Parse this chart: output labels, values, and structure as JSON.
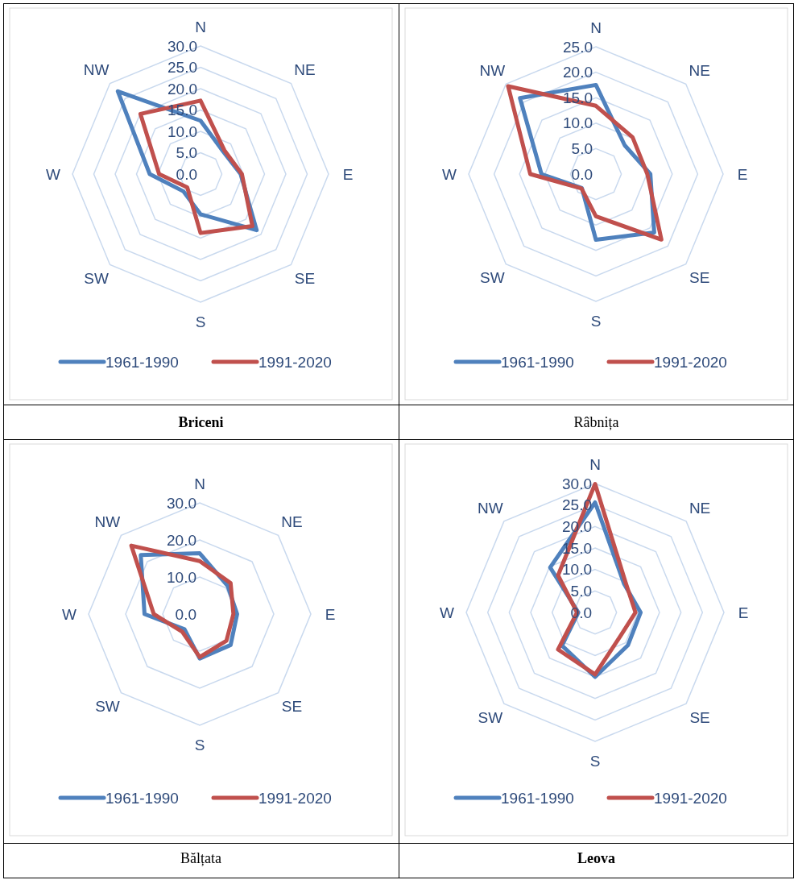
{
  "chart_data": [
    {
      "type": "radar",
      "title": "Briceni",
      "categories": [
        "N",
        "NE",
        "E",
        "SE",
        "S",
        "SW",
        "W",
        "NW"
      ],
      "ylim": [
        0,
        30
      ],
      "yticks": [
        {
          "value": 0,
          "label": "0.0"
        },
        {
          "value": 5,
          "label": "5.0"
        },
        {
          "value": 10,
          "label": "10.0"
        },
        {
          "value": 15,
          "label": "15.0"
        },
        {
          "value": 20,
          "label": "20.0"
        },
        {
          "value": 25,
          "label": "25.0"
        },
        {
          "value": 30,
          "label": "30.0"
        }
      ],
      "grid": true,
      "legend": "bottom",
      "series": [
        {
          "name": "1961-1990",
          "color": "#4f81bd",
          "values": [
            12.5,
            7.5,
            9.4,
            18.6,
            9.4,
            5.7,
            11.9,
            27.4
          ]
        },
        {
          "name": "1991-2020",
          "color": "#c0504d",
          "values": [
            17.2,
            7.9,
            9.7,
            17.2,
            13.8,
            4.4,
            9.7,
            19.9
          ]
        }
      ]
    },
    {
      "type": "radar",
      "title": "Râbnița",
      "categories": [
        "N",
        "NE",
        "E",
        "SE",
        "S",
        "SW",
        "W",
        "NW"
      ],
      "ylim": [
        0,
        25
      ],
      "yticks": [
        {
          "value": 0,
          "label": "0.0"
        },
        {
          "value": 5,
          "label": "5.0"
        },
        {
          "value": 10,
          "label": "10.0"
        },
        {
          "value": 15,
          "label": "15.0"
        },
        {
          "value": 20,
          "label": "20.0"
        },
        {
          "value": 25,
          "label": "25.0"
        }
      ],
      "grid": true,
      "legend": "bottom",
      "series": [
        {
          "name": "1961-1990",
          "color": "#4f81bd",
          "values": [
            17.5,
            8.0,
            10.7,
            16.2,
            12.9,
            3.9,
            10.7,
            21.1
          ]
        },
        {
          "name": "1991-2020",
          "color": "#c0504d",
          "values": [
            13.4,
            10.2,
            10.1,
            18.2,
            8.3,
            4.0,
            12.9,
            24.4
          ]
        }
      ]
    },
    {
      "type": "radar",
      "title": "Bălțata",
      "categories": [
        "N",
        "NE",
        "E",
        "SE",
        "S",
        "SW",
        "W",
        "NW"
      ],
      "ylim": [
        0,
        30
      ],
      "yticks": [
        {
          "value": 0,
          "label": "0.0"
        },
        {
          "value": 10,
          "label": "10.0"
        },
        {
          "value": 20,
          "label": "20.0"
        },
        {
          "value": 30,
          "label": "30.0"
        }
      ],
      "grid": true,
      "legend": "bottom",
      "series": [
        {
          "name": "1961-1990",
          "color": "#4f81bd",
          "values": [
            16.4,
            10.7,
            10.1,
            11.8,
            12.0,
            5.8,
            14.9,
            22.5
          ]
        },
        {
          "name": "1991-2020",
          "color": "#c0504d",
          "values": [
            14.3,
            11.8,
            9.1,
            10.2,
            11.6,
            6.7,
            12.4,
            26.1
          ]
        }
      ]
    },
    {
      "type": "radar",
      "title": "Leova",
      "categories": [
        "N",
        "NE",
        "E",
        "SE",
        "S",
        "SW",
        "W",
        "NW"
      ],
      "ylim": [
        0,
        30
      ],
      "yticks": [
        {
          "value": 0,
          "label": "0.0"
        },
        {
          "value": 5,
          "label": "5.0"
        },
        {
          "value": 10,
          "label": "10.0"
        },
        {
          "value": 15,
          "label": "15.0"
        },
        {
          "value": 20,
          "label": "20.0"
        },
        {
          "value": 25,
          "label": "25.0"
        },
        {
          "value": 30,
          "label": "30.0"
        }
      ],
      "grid": true,
      "legend": "bottom",
      "series": [
        {
          "name": "1961-1990",
          "color": "#4f81bd",
          "values": [
            25.6,
            9.5,
            10.6,
            10.8,
            15.0,
            10.9,
            3.9,
            14.8
          ]
        },
        {
          "name": "1991-2020",
          "color": "#c0504d",
          "values": [
            29.9,
            10.0,
            9.4,
            8.1,
            14.4,
            12.2,
            4.2,
            12.2
          ]
        }
      ]
    }
  ]
}
